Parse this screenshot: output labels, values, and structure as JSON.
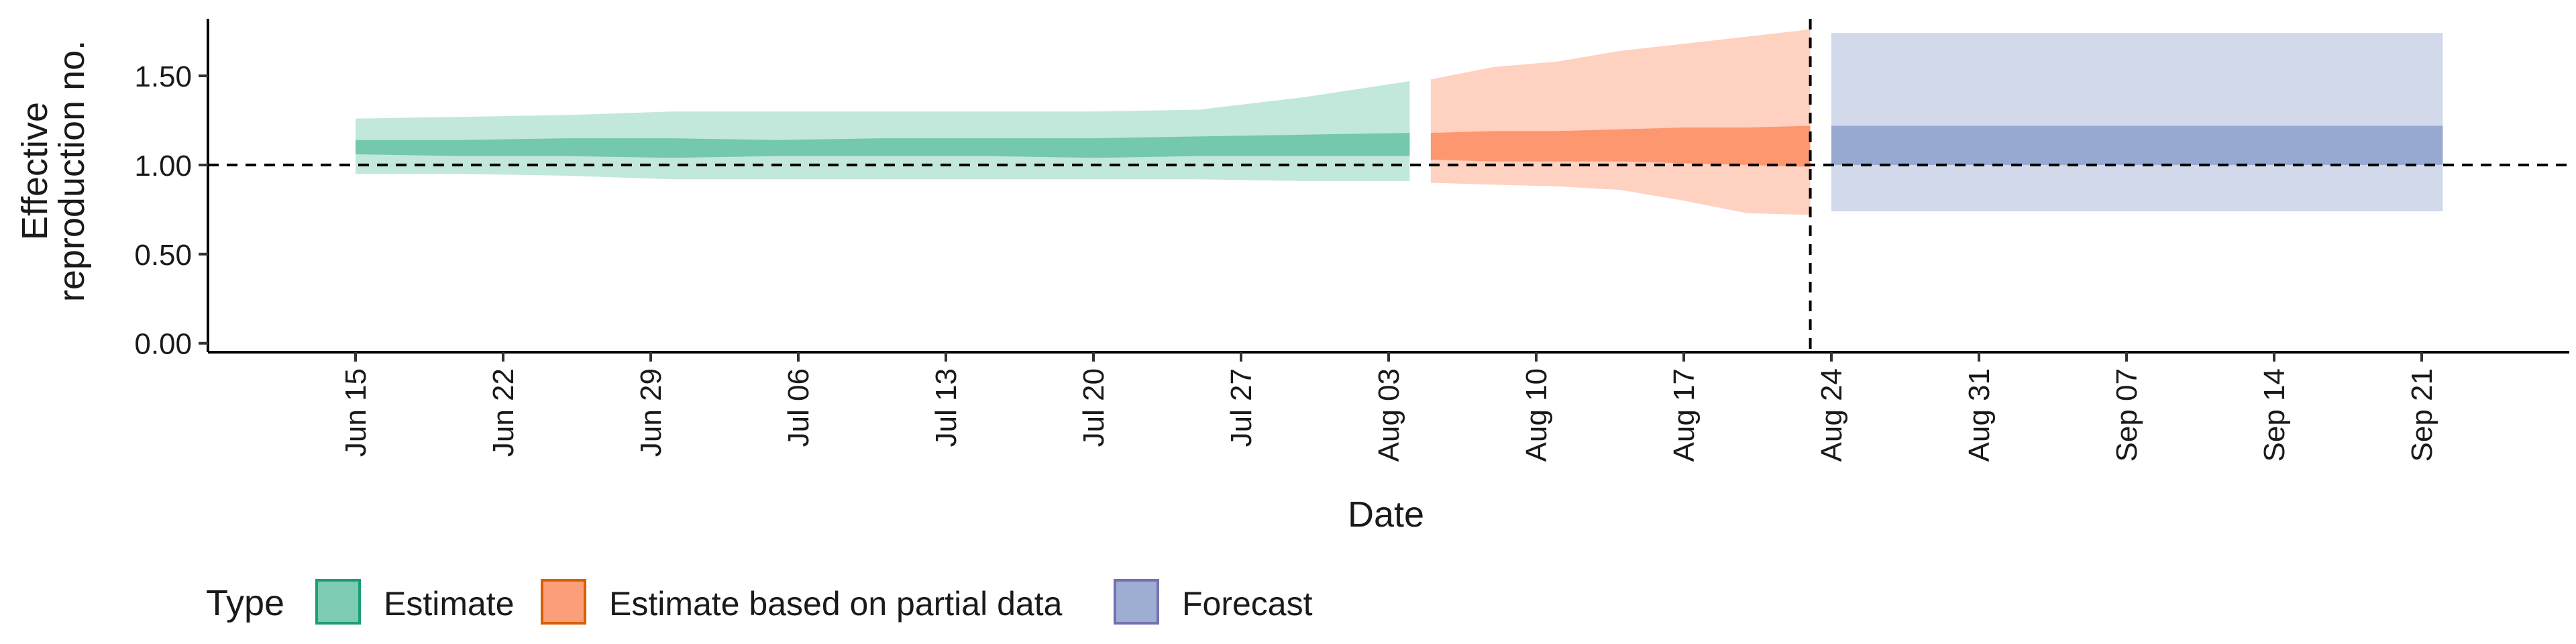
{
  "chart_data": {
    "type": "area",
    "title": "",
    "xlabel": "Date",
    "ylabel": [
      "Effective",
      "reproduction no."
    ],
    "x_range": [
      "2020-06-08",
      "2020-09-28"
    ],
    "ylim": [
      -0.05,
      1.82
    ],
    "y_ticks": [
      0.0,
      0.5,
      1.0,
      1.5
    ],
    "y_tick_labels": [
      "0.00",
      "0.50",
      "1.00",
      "1.50"
    ],
    "x_ticks": [
      "2020-06-15",
      "2020-06-22",
      "2020-06-29",
      "2020-07-06",
      "2020-07-13",
      "2020-07-20",
      "2020-07-27",
      "2020-08-03",
      "2020-08-10",
      "2020-08-17",
      "2020-08-24",
      "2020-08-31",
      "2020-09-07",
      "2020-09-14",
      "2020-09-21"
    ],
    "x_tick_labels": [
      "Jun 15",
      "Jun 22",
      "Jun 29",
      "Jul 06",
      "Jul 13",
      "Jul 20",
      "Jul 27",
      "Aug 03",
      "Aug 10",
      "Aug 17",
      "Aug 24",
      "Aug 31",
      "Sep 07",
      "Sep 14",
      "Sep 21"
    ],
    "reference_hline": 1.0,
    "reference_vline": "2020-08-23",
    "grid": false,
    "legend_placement": "bottom-left",
    "legend_title": "Type",
    "series": [
      {
        "name": "Estimate",
        "fill_color": "#66c2a5",
        "border_color": "#1b9e77",
        "dates": [
          "2020-06-15",
          "2020-06-20",
          "2020-06-25",
          "2020-06-30",
          "2020-07-05",
          "2020-07-10",
          "2020-07-15",
          "2020-07-20",
          "2020-07-25",
          "2020-07-30",
          "2020-08-04"
        ],
        "lower_90": [
          0.95,
          0.95,
          0.94,
          0.92,
          0.92,
          0.92,
          0.92,
          0.92,
          0.92,
          0.91,
          0.91
        ],
        "lower_50": [
          1.06,
          1.05,
          1.05,
          1.04,
          1.05,
          1.05,
          1.05,
          1.04,
          1.05,
          1.05,
          1.05
        ],
        "upper_50": [
          1.14,
          1.14,
          1.15,
          1.15,
          1.14,
          1.15,
          1.15,
          1.15,
          1.16,
          1.17,
          1.18
        ],
        "upper_90": [
          1.26,
          1.27,
          1.28,
          1.3,
          1.3,
          1.3,
          1.3,
          1.3,
          1.31,
          1.38,
          1.47
        ]
      },
      {
        "name": "Estimate based on partial data",
        "fill_color": "#fc8d62",
        "border_color": "#d95f02",
        "dates": [
          "2020-08-05",
          "2020-08-08",
          "2020-08-11",
          "2020-08-14",
          "2020-08-17",
          "2020-08-20",
          "2020-08-23"
        ],
        "lower_90": [
          0.9,
          0.89,
          0.88,
          0.86,
          0.8,
          0.73,
          0.72
        ],
        "lower_50": [
          1.03,
          1.02,
          1.02,
          1.02,
          1.01,
          1.0,
          0.99
        ],
        "upper_50": [
          1.18,
          1.19,
          1.19,
          1.2,
          1.21,
          1.21,
          1.22
        ],
        "upper_90": [
          1.48,
          1.55,
          1.58,
          1.64,
          1.68,
          1.72,
          1.76
        ]
      },
      {
        "name": "Forecast",
        "fill_color": "#8da0cb",
        "border_color": "#7570b3",
        "dates": [
          "2020-08-24",
          "2020-09-22"
        ],
        "lower_90": [
          0.74,
          0.74
        ],
        "lower_50": [
          1.0,
          1.0
        ],
        "upper_50": [
          1.22,
          1.22
        ],
        "upper_90": [
          1.74,
          1.74
        ]
      }
    ]
  }
}
